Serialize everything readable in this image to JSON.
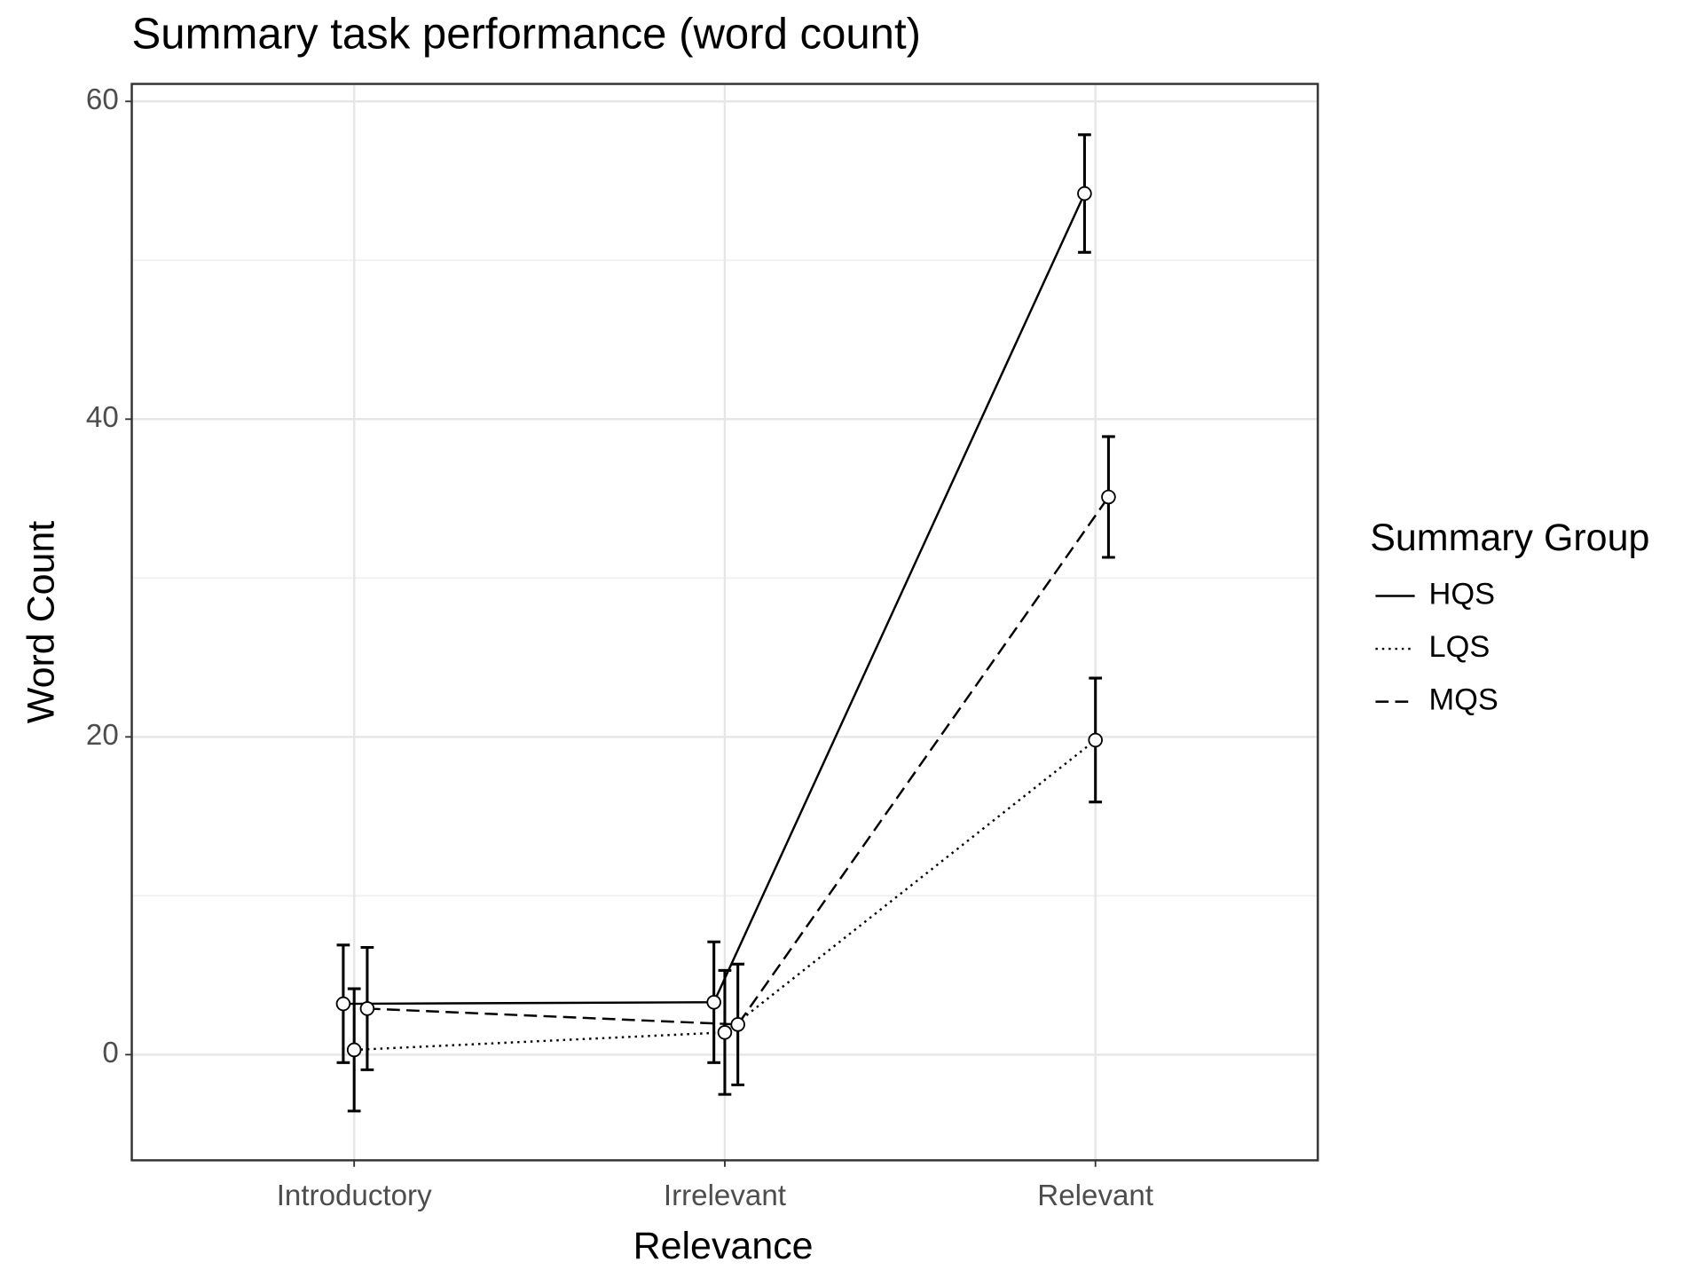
{
  "chart_data": {
    "type": "line",
    "title": "Summary task performance (word count)",
    "x_label": "Relevance",
    "y_label": "Word Count",
    "categories": [
      "Introductory",
      "Irrelevant",
      "Relevant"
    ],
    "series": [
      {
        "name": "HQS",
        "color": "#000000",
        "dash": "solid",
        "values": [
          3.2,
          3.3,
          54.2
        ],
        "errors": [
          3.7,
          3.8,
          3.7
        ]
      },
      {
        "name": "LQS",
        "color": "#000000",
        "dash": "dotted",
        "values": [
          0.3,
          1.4,
          19.8
        ],
        "errors": [
          3.85,
          3.9,
          3.9
        ]
      },
      {
        "name": "MQS",
        "color": "#000000",
        "dash": "dashed",
        "values": [
          2.9,
          1.9,
          35.1
        ],
        "errors": [
          3.85,
          3.8,
          3.8
        ]
      }
    ],
    "legend_title": "Summary Group",
    "legend": "right",
    "ylim": [
      -6.65,
      61.1
    ],
    "yticks": [
      0,
      20,
      40,
      60
    ],
    "minor_yticks": [
      10,
      30,
      50
    ],
    "grid": true
  }
}
